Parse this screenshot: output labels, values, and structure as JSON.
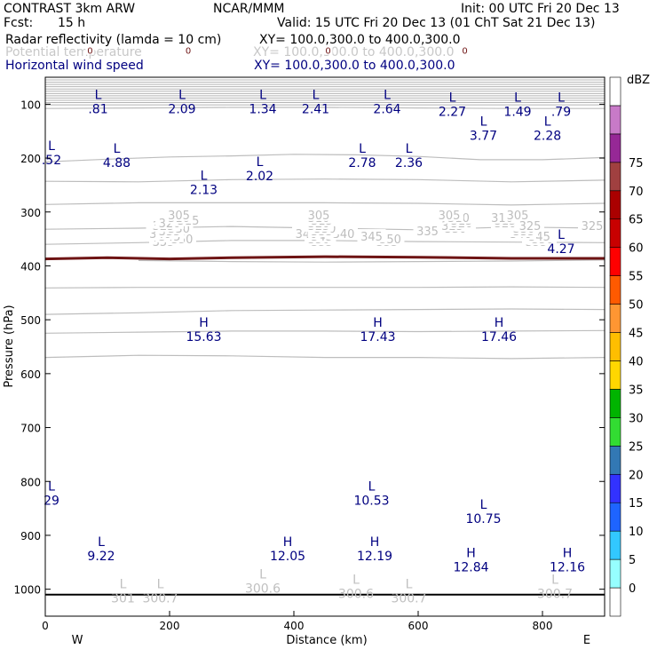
{
  "header": {
    "title_left": "CONTRAST  3km ARW",
    "org": "NCAR/MMM",
    "init": "Init: 00 UTC Fri 20 Dec 13",
    "fcst_label": "Fcst:",
    "fcst_value": "15 h",
    "valid": "Valid: 15 UTC Fri 20 Dec 13 (01 ChT Sat 21 Dec 13)",
    "fields": [
      {
        "name": "Radar reflectivity (lamda = 10 cm)",
        "xy": "XY=  100.0,300.0 to 400.0,300.0",
        "color": "#000000"
      },
      {
        "name": "Potential temperature",
        "xy": "XY=  100.0,300.0 to 400.0,300.0",
        "color": "#c8c8c8"
      },
      {
        "name": "Horizontal wind speed",
        "xy": "XY=  100.0,300.0 to 400.0,300.0",
        "color": "#000080"
      }
    ]
  },
  "chart_data": {
    "type": "cross-section",
    "xlabel": "Distance (km)",
    "ylabel": "Pressure (hPa)",
    "xlim": [
      0,
      900
    ],
    "ylim": [
      1050,
      50
    ],
    "x_ticks": [
      0,
      200,
      400,
      600,
      800
    ],
    "y_ticks": [
      100,
      200,
      300,
      400,
      500,
      600,
      700,
      800,
      900,
      1000
    ],
    "x_end_labels": {
      "left": "W",
      "right": "E"
    },
    "surface_pressure": 1010,
    "colorbar": {
      "label": "dBZ",
      "levels": [
        0,
        5,
        10,
        15,
        20,
        25,
        30,
        35,
        40,
        45,
        50,
        55,
        60,
        65,
        70,
        75
      ],
      "colors": [
        "#ffffff",
        "#96ffff",
        "#32c8ff",
        "#1e64ff",
        "#3232ff",
        "#3278b4",
        "#32dc32",
        "#00b400",
        "#ffd700",
        "#ffbe00",
        "#ff9632",
        "#ff5a00",
        "#ff0000",
        "#c80000",
        "#aa0000",
        "#a04040",
        "#962896",
        "#c87ac8",
        "#ffffff"
      ]
    },
    "theta_contours": [
      {
        "value": 355,
        "pts": [
          [
            0,
            108
          ],
          [
            150,
            107
          ],
          [
            300,
            106
          ],
          [
            450,
            106
          ],
          [
            600,
            107
          ],
          [
            750,
            108
          ],
          [
            900,
            108
          ]
        ],
        "labels": [
          [
            190,
            355
          ],
          [
            445,
            355
          ],
          [
            550,
            355
          ],
          [
            790,
            355
          ]
        ]
      },
      {
        "value": 350,
        "pts": [
          [
            0,
            207
          ],
          [
            100,
            202
          ],
          [
            200,
            198
          ],
          [
            300,
            196
          ],
          [
            400,
            193
          ],
          [
            500,
            194
          ],
          [
            600,
            197
          ],
          [
            700,
            203
          ],
          [
            800,
            203
          ],
          [
            900,
            199
          ]
        ],
        "labels": [
          [
            220,
            350
          ],
          [
            440,
            350
          ],
          [
            555,
            350
          ],
          [
            800,
            350
          ]
        ]
      },
      {
        "value": 345,
        "pts": [
          [
            0,
            243
          ],
          [
            150,
            244
          ],
          [
            300,
            240
          ],
          [
            450,
            239
          ],
          [
            600,
            240
          ],
          [
            750,
            244
          ],
          [
            900,
            241
          ]
        ],
        "labels": [
          [
            200,
            345
          ],
          [
            445,
            345
          ],
          [
            525,
            345
          ],
          [
            795,
            345
          ]
        ]
      },
      {
        "value": 340,
        "pts": [
          [
            0,
            286
          ],
          [
            150,
            283
          ],
          [
            300,
            283
          ],
          [
            450,
            283
          ],
          [
            600,
            284
          ],
          [
            750,
            287
          ],
          [
            900,
            284
          ]
        ],
        "labels": [
          [
            185,
            340
          ],
          [
            420,
            340
          ],
          [
            480,
            340
          ],
          [
            765,
            340
          ]
        ]
      },
      {
        "value": 335,
        "pts": [
          [
            0,
            332
          ],
          [
            150,
            330
          ],
          [
            300,
            327
          ],
          [
            450,
            330
          ],
          [
            600,
            333
          ],
          [
            750,
            328
          ],
          [
            900,
            330
          ]
        ],
        "labels": [
          [
            200,
            335
          ],
          [
            445,
            335
          ],
          [
            615,
            335
          ],
          [
            770,
            335
          ]
        ]
      },
      {
        "value": 330,
        "pts": [
          [
            0,
            360
          ],
          [
            150,
            357
          ],
          [
            300,
            353
          ],
          [
            450,
            353
          ],
          [
            600,
            355
          ],
          [
            750,
            356
          ],
          [
            900,
            357
          ]
        ],
        "labels": [
          [
            215,
            330
          ],
          [
            450,
            330
          ],
          [
            660,
            330
          ],
          [
            770,
            330
          ]
        ]
      },
      {
        "value": 325,
        "pts": [
          [
            150,
            390
          ],
          [
            300,
            392
          ],
          [
            450,
            393
          ],
          [
            600,
            392
          ],
          [
            750,
            391
          ],
          [
            900,
            389
          ]
        ],
        "labels": [
          [
            190,
            325
          ],
          [
            440,
            325
          ],
          [
            655,
            325
          ],
          [
            780,
            325
          ],
          [
            880,
            325
          ]
        ]
      },
      {
        "value": 320,
        "pts": [
          [
            0,
            441
          ],
          [
            150,
            440
          ],
          [
            300,
            440
          ],
          [
            450,
            440
          ],
          [
            600,
            440
          ],
          [
            750,
            439
          ],
          [
            900,
            440
          ]
        ],
        "labels": [
          [
            200,
            320
          ],
          [
            440,
            320
          ],
          [
            670,
            320
          ],
          [
            740,
            320
          ]
        ]
      },
      {
        "value": 315,
        "pts": [
          [
            0,
            490
          ],
          [
            150,
            487
          ],
          [
            300,
            483
          ],
          [
            450,
            482
          ],
          [
            600,
            481
          ],
          [
            750,
            480
          ],
          [
            900,
            481
          ]
        ],
        "labels": [
          [
            230,
            315
          ],
          [
            445,
            315
          ],
          [
            670,
            315
          ],
          [
            740,
            315
          ]
        ]
      },
      {
        "value": 310,
        "pts": [
          [
            0,
            525
          ],
          [
            150,
            523
          ],
          [
            300,
            521
          ],
          [
            450,
            521
          ],
          [
            600,
            522
          ],
          [
            750,
            521
          ],
          [
            900,
            520
          ]
        ],
        "labels": [
          [
            215,
            310
          ],
          [
            440,
            310
          ],
          [
            665,
            310
          ],
          [
            735,
            310
          ]
        ]
      },
      {
        "value": 305,
        "pts": [
          [
            0,
            570
          ],
          [
            150,
            566
          ],
          [
            300,
            567
          ],
          [
            450,
            570
          ],
          [
            600,
            570
          ],
          [
            750,
            572
          ],
          [
            900,
            570
          ]
        ],
        "labels": [
          [
            215,
            305
          ],
          [
            440,
            305
          ],
          [
            650,
            305
          ],
          [
            760,
            305
          ]
        ]
      }
    ],
    "zero_dbz_line": [
      [
        0,
        387
      ],
      [
        100,
        385
      ],
      [
        200,
        387
      ],
      [
        300,
        385
      ],
      [
        450,
        383
      ],
      [
        600,
        384
      ],
      [
        750,
        386
      ],
      [
        900,
        386
      ]
    ],
    "zero_dbz_labels": [
      [
        72,
        0
      ],
      [
        230,
        0
      ],
      [
        455,
        0
      ],
      [
        675,
        0
      ]
    ],
    "wind_extrema": [
      {
        "type": "L",
        "value": ".81",
        "x": 85,
        "p": 95
      },
      {
        "type": "L",
        "value": "2.09",
        "x": 220,
        "p": 95
      },
      {
        "type": "L",
        "value": "1.34",
        "x": 350,
        "p": 95
      },
      {
        "type": "L",
        "value": "2.41",
        "x": 435,
        "p": 95
      },
      {
        "type": "L",
        "value": "2.64",
        "x": 550,
        "p": 95
      },
      {
        "type": "L",
        "value": "2.27",
        "x": 655,
        "p": 100
      },
      {
        "type": "L",
        "value": "1.49",
        "x": 760,
        "p": 100
      },
      {
        "type": "L",
        "value": ".79",
        "x": 830,
        "p": 100
      },
      {
        "type": "L",
        "value": "3.77",
        "x": 705,
        "p": 145
      },
      {
        "type": "L",
        "value": "2.28",
        "x": 808,
        "p": 145
      },
      {
        "type": "L",
        "value": ".52",
        "x": 10,
        "p": 190
      },
      {
        "type": "L",
        "value": "4.88",
        "x": 115,
        "p": 195
      },
      {
        "type": "L",
        "value": "2.78",
        "x": 510,
        "p": 195
      },
      {
        "type": "L",
        "value": "2.36",
        "x": 585,
        "p": 195
      },
      {
        "type": "L",
        "value": "2.02",
        "x": 345,
        "p": 220
      },
      {
        "type": "L",
        "value": "2.13",
        "x": 255,
        "p": 245
      },
      {
        "type": "L",
        "value": "4.27",
        "x": 830,
        "p": 355
      },
      {
        "type": "H",
        "value": "15.63",
        "x": 255,
        "p": 518
      },
      {
        "type": "H",
        "value": "17.43",
        "x": 535,
        "p": 518
      },
      {
        "type": "H",
        "value": "17.46",
        "x": 730,
        "p": 518
      },
      {
        "type": "L",
        "value": "10.53",
        "x": 525,
        "p": 822
      },
      {
        "type": "L",
        "value": "29",
        "x": 10,
        "p": 822
      },
      {
        "type": "L",
        "value": "10.75",
        "x": 705,
        "p": 856
      },
      {
        "type": "L",
        "value": "9.22",
        "x": 90,
        "p": 925
      },
      {
        "type": "H",
        "value": "12.05",
        "x": 390,
        "p": 925
      },
      {
        "type": "H",
        "value": "12.19",
        "x": 530,
        "p": 925
      },
      {
        "type": "H",
        "value": "12.84",
        "x": 685,
        "p": 945
      },
      {
        "type": "H",
        "value": "12.16",
        "x": 840,
        "p": 945
      }
    ],
    "theta_extrema": [
      {
        "type": "L",
        "value": "301",
        "x": 125,
        "p": 1003
      },
      {
        "type": "L",
        "value": "300.7",
        "x": 185,
        "p": 1003
      },
      {
        "type": "L",
        "value": "300.6",
        "x": 350,
        "p": 985
      },
      {
        "type": "L",
        "value": "300.6",
        "x": 500,
        "p": 995
      },
      {
        "type": "L",
        "value": "300.7",
        "x": 585,
        "p": 1003
      },
      {
        "type": "L",
        "value": "300.7",
        "x": 820,
        "p": 995
      }
    ]
  }
}
